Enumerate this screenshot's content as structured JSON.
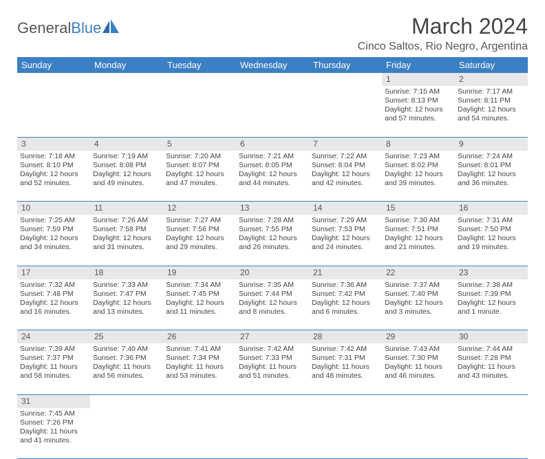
{
  "logo": {
    "part1": "General",
    "part2": "Blue"
  },
  "title": "March 2024",
  "location": "Cinco Saltos, Rio Negro, Argentina",
  "colors": {
    "header_bg": "#3b7fc4",
    "header_text": "#ffffff",
    "daynum_bg": "#e8e8e8",
    "cell_border": "#3b7fc4",
    "text": "#444444"
  },
  "weekdays": [
    "Sunday",
    "Monday",
    "Tuesday",
    "Wednesday",
    "Thursday",
    "Friday",
    "Saturday"
  ],
  "weeks": [
    [
      null,
      null,
      null,
      null,
      null,
      {
        "n": "1",
        "sr": "Sunrise: 7:15 AM",
        "ss": "Sunset: 8:13 PM",
        "d1": "Daylight: 12 hours",
        "d2": "and 57 minutes."
      },
      {
        "n": "2",
        "sr": "Sunrise: 7:17 AM",
        "ss": "Sunset: 8:11 PM",
        "d1": "Daylight: 12 hours",
        "d2": "and 54 minutes."
      }
    ],
    [
      {
        "n": "3",
        "sr": "Sunrise: 7:18 AM",
        "ss": "Sunset: 8:10 PM",
        "d1": "Daylight: 12 hours",
        "d2": "and 52 minutes."
      },
      {
        "n": "4",
        "sr": "Sunrise: 7:19 AM",
        "ss": "Sunset: 8:08 PM",
        "d1": "Daylight: 12 hours",
        "d2": "and 49 minutes."
      },
      {
        "n": "5",
        "sr": "Sunrise: 7:20 AM",
        "ss": "Sunset: 8:07 PM",
        "d1": "Daylight: 12 hours",
        "d2": "and 47 minutes."
      },
      {
        "n": "6",
        "sr": "Sunrise: 7:21 AM",
        "ss": "Sunset: 8:05 PM",
        "d1": "Daylight: 12 hours",
        "d2": "and 44 minutes."
      },
      {
        "n": "7",
        "sr": "Sunrise: 7:22 AM",
        "ss": "Sunset: 8:04 PM",
        "d1": "Daylight: 12 hours",
        "d2": "and 42 minutes."
      },
      {
        "n": "8",
        "sr": "Sunrise: 7:23 AM",
        "ss": "Sunset: 8:02 PM",
        "d1": "Daylight: 12 hours",
        "d2": "and 39 minutes."
      },
      {
        "n": "9",
        "sr": "Sunrise: 7:24 AM",
        "ss": "Sunset: 8:01 PM",
        "d1": "Daylight: 12 hours",
        "d2": "and 36 minutes."
      }
    ],
    [
      {
        "n": "10",
        "sr": "Sunrise: 7:25 AM",
        "ss": "Sunset: 7:59 PM",
        "d1": "Daylight: 12 hours",
        "d2": "and 34 minutes."
      },
      {
        "n": "11",
        "sr": "Sunrise: 7:26 AM",
        "ss": "Sunset: 7:58 PM",
        "d1": "Daylight: 12 hours",
        "d2": "and 31 minutes."
      },
      {
        "n": "12",
        "sr": "Sunrise: 7:27 AM",
        "ss": "Sunset: 7:56 PM",
        "d1": "Daylight: 12 hours",
        "d2": "and 29 minutes."
      },
      {
        "n": "13",
        "sr": "Sunrise: 7:28 AM",
        "ss": "Sunset: 7:55 PM",
        "d1": "Daylight: 12 hours",
        "d2": "and 26 minutes."
      },
      {
        "n": "14",
        "sr": "Sunrise: 7:29 AM",
        "ss": "Sunset: 7:53 PM",
        "d1": "Daylight: 12 hours",
        "d2": "and 24 minutes."
      },
      {
        "n": "15",
        "sr": "Sunrise: 7:30 AM",
        "ss": "Sunset: 7:51 PM",
        "d1": "Daylight: 12 hours",
        "d2": "and 21 minutes."
      },
      {
        "n": "16",
        "sr": "Sunrise: 7:31 AM",
        "ss": "Sunset: 7:50 PM",
        "d1": "Daylight: 12 hours",
        "d2": "and 19 minutes."
      }
    ],
    [
      {
        "n": "17",
        "sr": "Sunrise: 7:32 AM",
        "ss": "Sunset: 7:48 PM",
        "d1": "Daylight: 12 hours",
        "d2": "and 16 minutes."
      },
      {
        "n": "18",
        "sr": "Sunrise: 7:33 AM",
        "ss": "Sunset: 7:47 PM",
        "d1": "Daylight: 12 hours",
        "d2": "and 13 minutes."
      },
      {
        "n": "19",
        "sr": "Sunrise: 7:34 AM",
        "ss": "Sunset: 7:45 PM",
        "d1": "Daylight: 12 hours",
        "d2": "and 11 minutes."
      },
      {
        "n": "20",
        "sr": "Sunrise: 7:35 AM",
        "ss": "Sunset: 7:44 PM",
        "d1": "Daylight: 12 hours",
        "d2": "and 8 minutes."
      },
      {
        "n": "21",
        "sr": "Sunrise: 7:36 AM",
        "ss": "Sunset: 7:42 PM",
        "d1": "Daylight: 12 hours",
        "d2": "and 6 minutes."
      },
      {
        "n": "22",
        "sr": "Sunrise: 7:37 AM",
        "ss": "Sunset: 7:40 PM",
        "d1": "Daylight: 12 hours",
        "d2": "and 3 minutes."
      },
      {
        "n": "23",
        "sr": "Sunrise: 7:38 AM",
        "ss": "Sunset: 7:39 PM",
        "d1": "Daylight: 12 hours",
        "d2": "and 1 minute."
      }
    ],
    [
      {
        "n": "24",
        "sr": "Sunrise: 7:39 AM",
        "ss": "Sunset: 7:37 PM",
        "d1": "Daylight: 11 hours",
        "d2": "and 58 minutes."
      },
      {
        "n": "25",
        "sr": "Sunrise: 7:40 AM",
        "ss": "Sunset: 7:36 PM",
        "d1": "Daylight: 11 hours",
        "d2": "and 56 minutes."
      },
      {
        "n": "26",
        "sr": "Sunrise: 7:41 AM",
        "ss": "Sunset: 7:34 PM",
        "d1": "Daylight: 11 hours",
        "d2": "and 53 minutes."
      },
      {
        "n": "27",
        "sr": "Sunrise: 7:42 AM",
        "ss": "Sunset: 7:33 PM",
        "d1": "Daylight: 11 hours",
        "d2": "and 51 minutes."
      },
      {
        "n": "28",
        "sr": "Sunrise: 7:42 AM",
        "ss": "Sunset: 7:31 PM",
        "d1": "Daylight: 11 hours",
        "d2": "and 48 minutes."
      },
      {
        "n": "29",
        "sr": "Sunrise: 7:43 AM",
        "ss": "Sunset: 7:30 PM",
        "d1": "Daylight: 11 hours",
        "d2": "and 46 minutes."
      },
      {
        "n": "30",
        "sr": "Sunrise: 7:44 AM",
        "ss": "Sunset: 7:28 PM",
        "d1": "Daylight: 11 hours",
        "d2": "and 43 minutes."
      }
    ],
    [
      {
        "n": "31",
        "sr": "Sunrise: 7:45 AM",
        "ss": "Sunset: 7:26 PM",
        "d1": "Daylight: 11 hours",
        "d2": "and 41 minutes."
      },
      null,
      null,
      null,
      null,
      null,
      null
    ]
  ]
}
